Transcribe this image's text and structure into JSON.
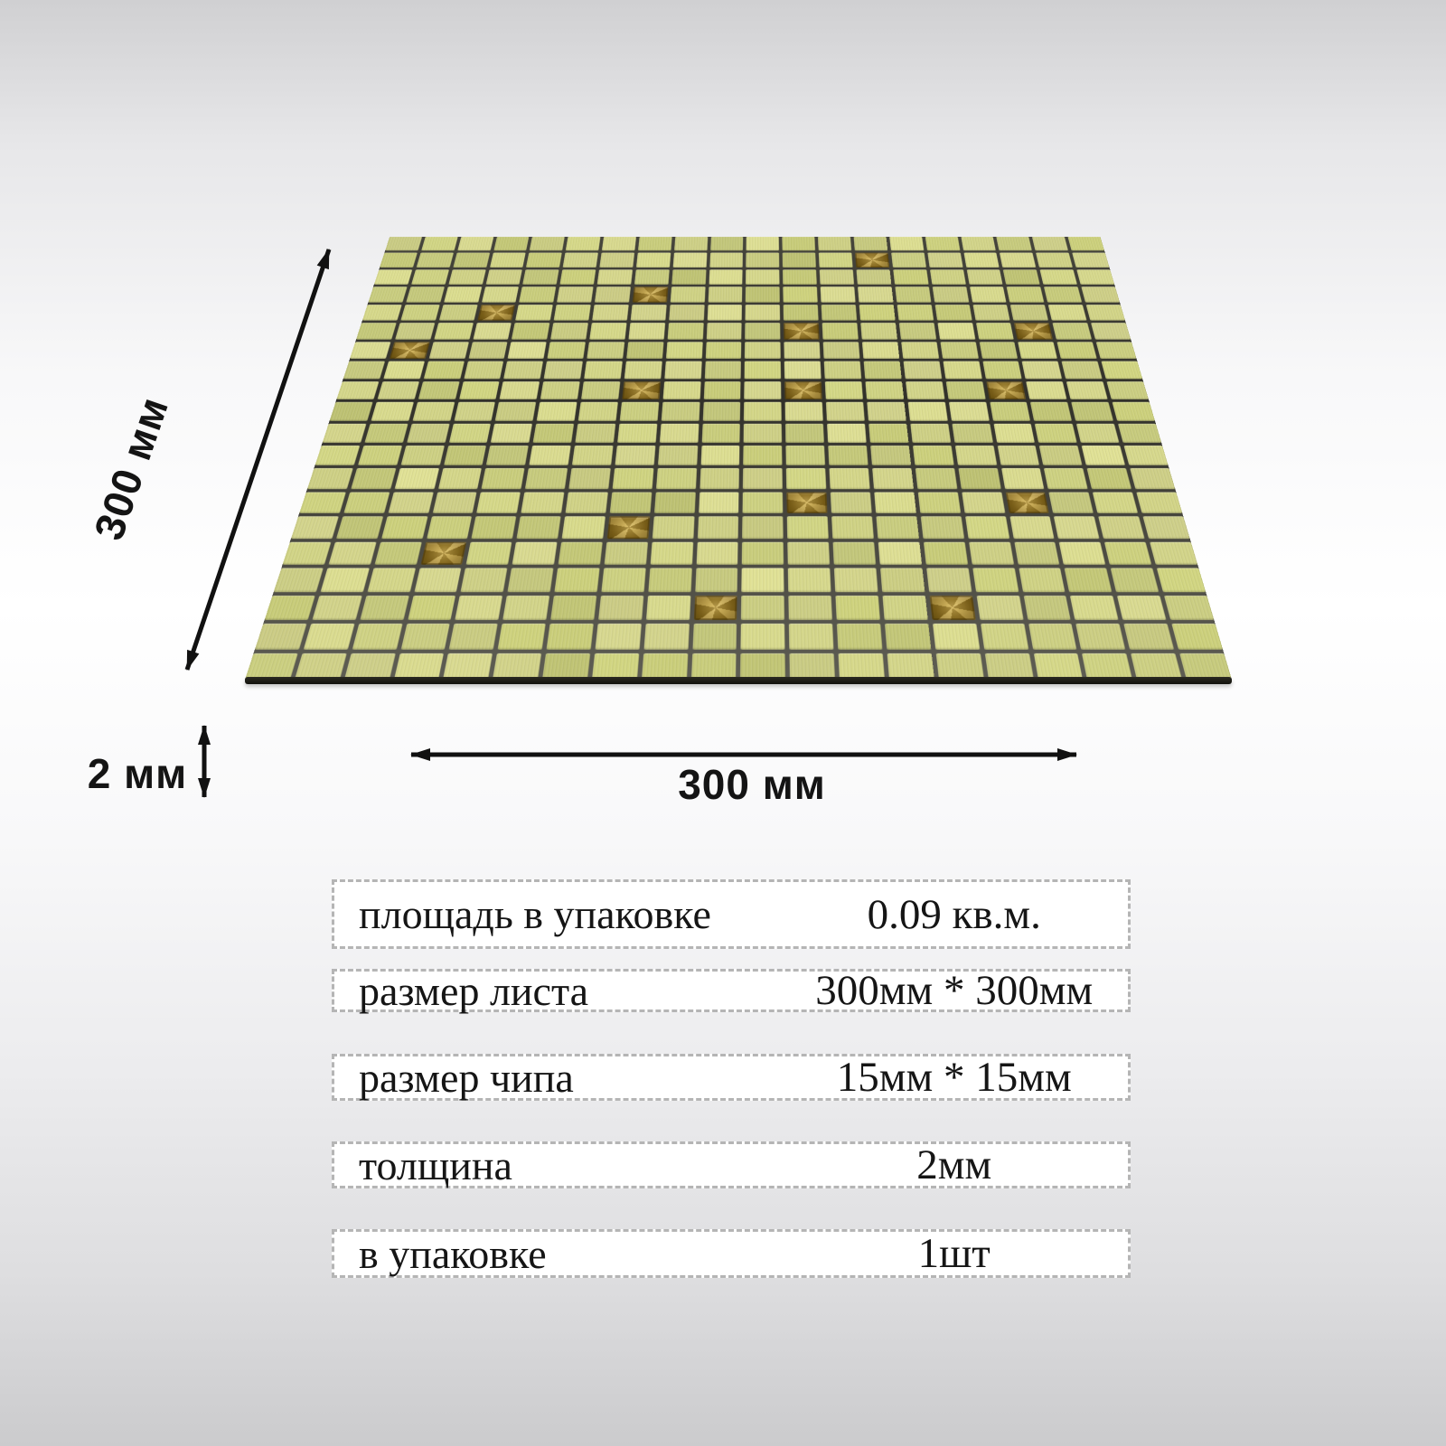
{
  "background": {
    "top_color": "#d0d0d2",
    "middle_color": "#ffffff",
    "bottom_color": "#cbcbcd"
  },
  "mosaic_sheet": {
    "rows": 20,
    "cols": 20,
    "chip_colors": [
      "#d2d489",
      "#cdd083",
      "#d7d88f",
      "#c9cd7c",
      "#d0d286",
      "#cbcf80",
      "#d4d58b",
      "#c6ca78"
    ],
    "accent_color": "#96782a",
    "gap_color": "#32312a",
    "accent_cells": [
      [
        1,
        13
      ],
      [
        3,
        7
      ],
      [
        4,
        3
      ],
      [
        5,
        11
      ],
      [
        5,
        17
      ],
      [
        6,
        1
      ],
      [
        8,
        7
      ],
      [
        8,
        11
      ],
      [
        8,
        16
      ],
      [
        13,
        11
      ],
      [
        13,
        16
      ],
      [
        14,
        7
      ],
      [
        15,
        3
      ],
      [
        17,
        9
      ],
      [
        17,
        14
      ]
    ]
  },
  "dimension_annotations": {
    "side_label": "300 мм",
    "width_label": "300 мм",
    "thickness_label": "2 мм",
    "arrow_color": "#111111"
  },
  "spec_table": {
    "rows": [
      {
        "label": "площадь в упаковке",
        "value": "0.09 кв.м."
      },
      {
        "label": "размер листа",
        "value": "300мм * 300мм"
      },
      {
        "label": "размер чипа",
        "value": "15мм * 15мм"
      },
      {
        "label": "толщина",
        "value": "2мм"
      },
      {
        "label": "в упаковке",
        "value": "1шт"
      }
    ]
  }
}
